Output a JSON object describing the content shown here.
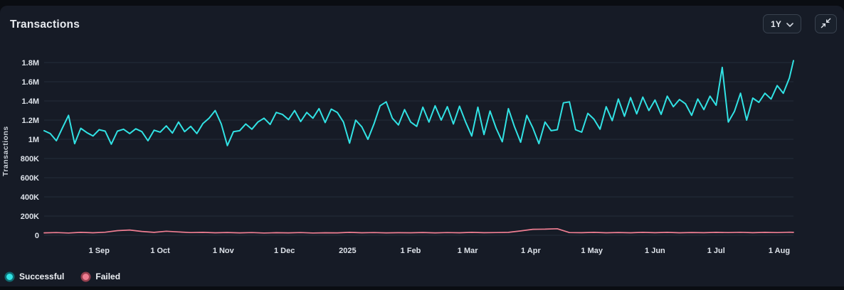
{
  "header": {
    "title": "Transactions",
    "range_selector": {
      "value": "1Y"
    },
    "minimize_button": {
      "icon": "collapse-arrows"
    }
  },
  "colors": {
    "card_background": "#161b26",
    "page_background": "#0a0d12",
    "grid": "#242c39",
    "tick_text": "#dde2e9",
    "successful": "#31e2e4",
    "failed": "#ef7e92",
    "successful_ring": "#0f6b72",
    "failed_ring": "#96404f"
  },
  "legend": {
    "items": [
      {
        "label": "Successful",
        "color": "#31e2e4",
        "ring": "#0f6b72"
      },
      {
        "label": "Failed",
        "color": "#ef7e92",
        "ring": "#96404f"
      }
    ]
  },
  "y_axis": {
    "title": "Transactions",
    "ticks": [
      {
        "label": "1.8M",
        "value": 1800
      },
      {
        "label": "1.6M",
        "value": 1600
      },
      {
        "label": "1.4M",
        "value": 1400
      },
      {
        "label": "1.2M",
        "value": 1200
      },
      {
        "label": "1M",
        "value": 1000
      },
      {
        "label": "800K",
        "value": 800
      },
      {
        "label": "600K",
        "value": 600
      },
      {
        "label": "400K",
        "value": 400
      },
      {
        "label": "200K",
        "value": 200
      },
      {
        "label": "0",
        "value": 0
      }
    ]
  },
  "x_axis": {
    "ticks": [
      {
        "label": "1 Sep",
        "day": 27
      },
      {
        "label": "1 Oct",
        "day": 57
      },
      {
        "label": "1 Nov",
        "day": 88
      },
      {
        "label": "1 Dec",
        "day": 118
      },
      {
        "label": "2025",
        "day": 149
      },
      {
        "label": "1 Feb",
        "day": 180
      },
      {
        "label": "1 Mar",
        "day": 208
      },
      {
        "label": "1 Apr",
        "day": 239
      },
      {
        "label": "1 May",
        "day": 269
      },
      {
        "label": "1 Jun",
        "day": 300
      },
      {
        "label": "1 Jul",
        "day": 330
      },
      {
        "label": "1 Aug",
        "day": 361
      }
    ]
  },
  "chart_data": {
    "type": "line",
    "title": "Transactions",
    "xlabel": "",
    "ylabel": "Transactions",
    "ylim": [
      0,
      1800000
    ],
    "grid": "horizontal",
    "legend_position": "bottom-left",
    "x_domain_days": [
      0,
      368
    ],
    "x_range": [
      "early Aug 2024",
      "early Aug 2025"
    ],
    "values_unit": "thousands of transactions (K)",
    "points_format": "[day_offset, value_in_thousands]",
    "series": [
      {
        "name": "Successful",
        "color": "#31e2e4",
        "points": [
          [
            0,
            1090
          ],
          [
            3,
            1060
          ],
          [
            6,
            985
          ],
          [
            9,
            1120
          ],
          [
            12,
            1250
          ],
          [
            15,
            955
          ],
          [
            18,
            1115
          ],
          [
            21,
            1070
          ],
          [
            24,
            1035
          ],
          [
            27,
            1100
          ],
          [
            30,
            1085
          ],
          [
            33,
            950
          ],
          [
            36,
            1085
          ],
          [
            39,
            1105
          ],
          [
            42,
            1060
          ],
          [
            45,
            1110
          ],
          [
            48,
            1080
          ],
          [
            51,
            985
          ],
          [
            54,
            1095
          ],
          [
            57,
            1075
          ],
          [
            60,
            1140
          ],
          [
            63,
            1065
          ],
          [
            66,
            1180
          ],
          [
            69,
            1080
          ],
          [
            72,
            1135
          ],
          [
            75,
            1060
          ],
          [
            78,
            1165
          ],
          [
            81,
            1220
          ],
          [
            84,
            1300
          ],
          [
            87,
            1160
          ],
          [
            90,
            935
          ],
          [
            93,
            1080
          ],
          [
            96,
            1090
          ],
          [
            99,
            1160
          ],
          [
            102,
            1105
          ],
          [
            105,
            1180
          ],
          [
            108,
            1220
          ],
          [
            111,
            1155
          ],
          [
            114,
            1280
          ],
          [
            117,
            1260
          ],
          [
            120,
            1205
          ],
          [
            123,
            1300
          ],
          [
            126,
            1185
          ],
          [
            129,
            1280
          ],
          [
            132,
            1220
          ],
          [
            135,
            1320
          ],
          [
            138,
            1175
          ],
          [
            141,
            1315
          ],
          [
            144,
            1280
          ],
          [
            147,
            1180
          ],
          [
            150,
            960
          ],
          [
            153,
            1200
          ],
          [
            156,
            1130
          ],
          [
            159,
            1000
          ],
          [
            162,
            1160
          ],
          [
            165,
            1350
          ],
          [
            168,
            1390
          ],
          [
            171,
            1220
          ],
          [
            174,
            1150
          ],
          [
            177,
            1310
          ],
          [
            180,
            1180
          ],
          [
            183,
            1135
          ],
          [
            186,
            1335
          ],
          [
            189,
            1180
          ],
          [
            192,
            1350
          ],
          [
            195,
            1200
          ],
          [
            198,
            1340
          ],
          [
            201,
            1160
          ],
          [
            204,
            1345
          ],
          [
            207,
            1180
          ],
          [
            210,
            1035
          ],
          [
            213,
            1335
          ],
          [
            216,
            1050
          ],
          [
            219,
            1295
          ],
          [
            222,
            1115
          ],
          [
            225,
            975
          ],
          [
            228,
            1320
          ],
          [
            231,
            1130
          ],
          [
            234,
            970
          ],
          [
            237,
            1250
          ],
          [
            240,
            1120
          ],
          [
            243,
            955
          ],
          [
            246,
            1180
          ],
          [
            249,
            1090
          ],
          [
            252,
            1100
          ],
          [
            255,
            1380
          ],
          [
            258,
            1390
          ],
          [
            261,
            1100
          ],
          [
            264,
            1075
          ],
          [
            267,
            1270
          ],
          [
            270,
            1210
          ],
          [
            273,
            1105
          ],
          [
            276,
            1340
          ],
          [
            279,
            1195
          ],
          [
            282,
            1420
          ],
          [
            285,
            1240
          ],
          [
            288,
            1435
          ],
          [
            291,
            1265
          ],
          [
            294,
            1440
          ],
          [
            297,
            1300
          ],
          [
            300,
            1410
          ],
          [
            303,
            1260
          ],
          [
            306,
            1450
          ],
          [
            309,
            1340
          ],
          [
            312,
            1415
          ],
          [
            315,
            1370
          ],
          [
            318,
            1250
          ],
          [
            321,
            1420
          ],
          [
            324,
            1310
          ],
          [
            327,
            1450
          ],
          [
            330,
            1355
          ],
          [
            333,
            1750
          ],
          [
            336,
            1180
          ],
          [
            339,
            1290
          ],
          [
            342,
            1480
          ],
          [
            345,
            1200
          ],
          [
            348,
            1430
          ],
          [
            351,
            1385
          ],
          [
            354,
            1480
          ],
          [
            357,
            1420
          ],
          [
            360,
            1560
          ],
          [
            363,
            1480
          ],
          [
            366,
            1640
          ],
          [
            368,
            1820
          ]
        ]
      },
      {
        "name": "Failed",
        "color": "#ef7e92",
        "points": [
          [
            0,
            25
          ],
          [
            6,
            28
          ],
          [
            12,
            24
          ],
          [
            18,
            30
          ],
          [
            24,
            26
          ],
          [
            30,
            32
          ],
          [
            36,
            48
          ],
          [
            42,
            55
          ],
          [
            48,
            40
          ],
          [
            54,
            30
          ],
          [
            60,
            42
          ],
          [
            66,
            35
          ],
          [
            72,
            28
          ],
          [
            78,
            30
          ],
          [
            84,
            26
          ],
          [
            90,
            29
          ],
          [
            96,
            25
          ],
          [
            102,
            28
          ],
          [
            108,
            24
          ],
          [
            114,
            27
          ],
          [
            120,
            25
          ],
          [
            126,
            28
          ],
          [
            132,
            24
          ],
          [
            138,
            26
          ],
          [
            144,
            25
          ],
          [
            150,
            30
          ],
          [
            156,
            26
          ],
          [
            162,
            28
          ],
          [
            168,
            25
          ],
          [
            174,
            27
          ],
          [
            180,
            26
          ],
          [
            186,
            29
          ],
          [
            192,
            25
          ],
          [
            198,
            28
          ],
          [
            204,
            26
          ],
          [
            210,
            30
          ],
          [
            216,
            27
          ],
          [
            222,
            28
          ],
          [
            228,
            30
          ],
          [
            234,
            45
          ],
          [
            240,
            62
          ],
          [
            246,
            64
          ],
          [
            252,
            68
          ],
          [
            258,
            28
          ],
          [
            264,
            27
          ],
          [
            270,
            30
          ],
          [
            276,
            26
          ],
          [
            282,
            29
          ],
          [
            288,
            26
          ],
          [
            294,
            30
          ],
          [
            300,
            27
          ],
          [
            306,
            30
          ],
          [
            312,
            26
          ],
          [
            318,
            29
          ],
          [
            324,
            27
          ],
          [
            330,
            30
          ],
          [
            336,
            28
          ],
          [
            342,
            31
          ],
          [
            348,
            27
          ],
          [
            354,
            30
          ],
          [
            360,
            28
          ],
          [
            366,
            32
          ],
          [
            368,
            30
          ]
        ]
      }
    ]
  }
}
